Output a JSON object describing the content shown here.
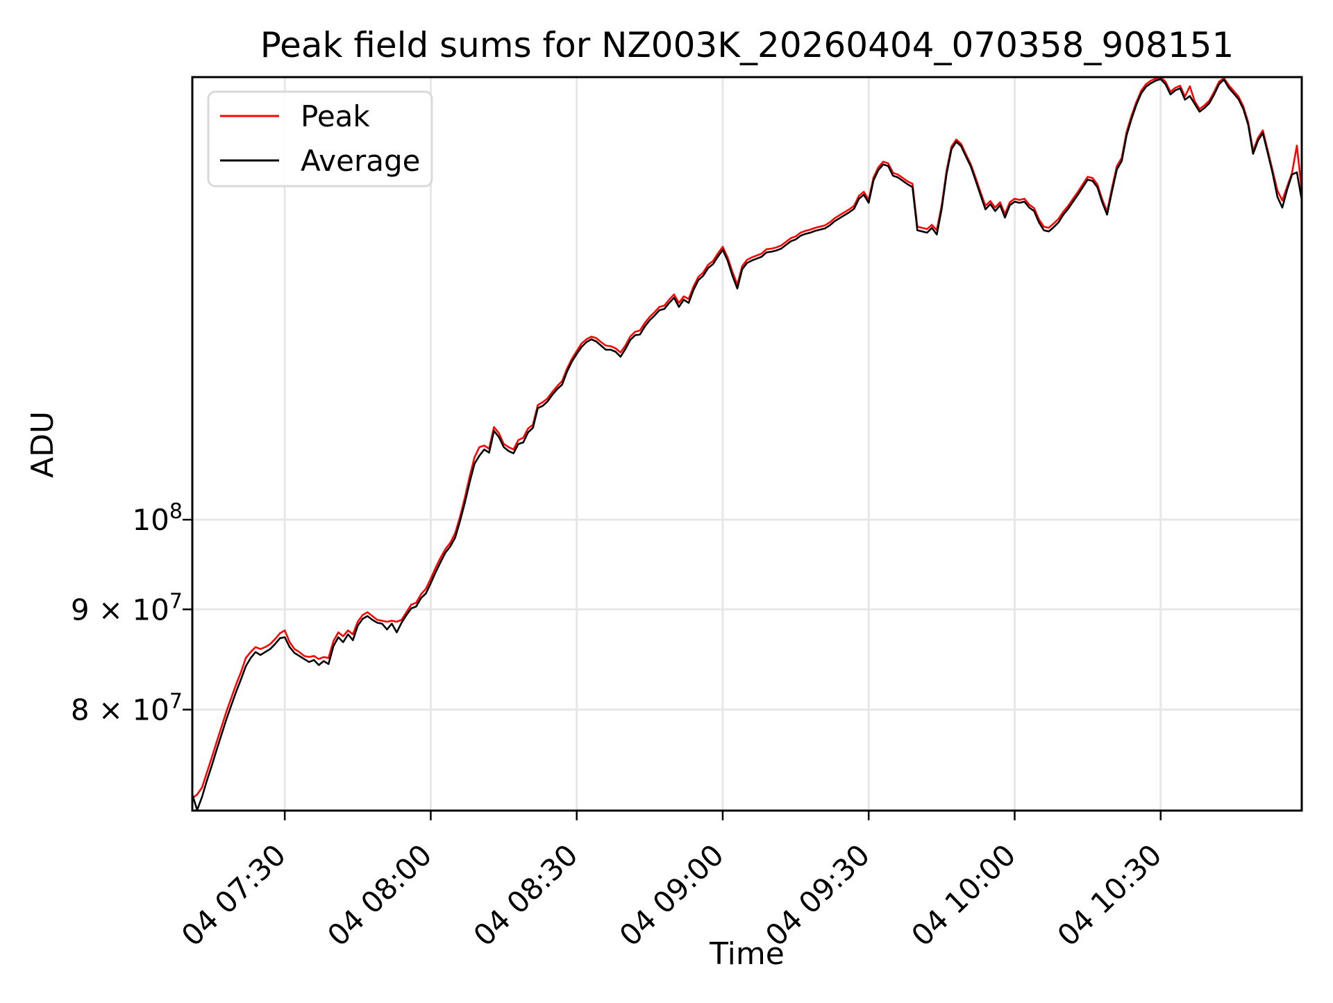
{
  "title": "Peak field sums for NZ003K_20260404_070358_908151",
  "x_axis": {
    "label": "Time",
    "ticks": [
      {
        "time": "07:30",
        "label": "04 07:30"
      },
      {
        "time": "08:00",
        "label": "04 08:00"
      },
      {
        "time": "08:30",
        "label": "04 08:30"
      },
      {
        "time": "09:00",
        "label": "04 09:00"
      },
      {
        "time": "09:30",
        "label": "04 09:30"
      },
      {
        "time": "10:00",
        "label": "04 10:00"
      },
      {
        "time": "10:30",
        "label": "04 10:30"
      }
    ],
    "tick_rotation_deg": 44
  },
  "y_axis": {
    "label": "ADU",
    "scale": "log",
    "ticks": [
      {
        "value": 80000000,
        "main": "8 × 10",
        "sup": "7"
      },
      {
        "value": 90000000,
        "main": "9 × 10",
        "sup": "7"
      },
      {
        "value": 100000000,
        "main": "10",
        "sup": "8"
      }
    ]
  },
  "legend": {
    "items": [
      {
        "label": "Peak",
        "color": "#ff0000"
      },
      {
        "label": "Average",
        "color": "#000000"
      }
    ]
  },
  "colors": {
    "peak": "#ff0000",
    "average": "#000000",
    "grid": "#e7e7e7",
    "spine": "#000000",
    "legend_edge": "#d9d9d9",
    "background": "#ffffff"
  },
  "chart_data": {
    "type": "line",
    "title": "Peak field sums for NZ003K_20260404_070358_908151",
    "xlabel": "Time",
    "ylabel": "ADU",
    "yscale": "log",
    "grid": true,
    "legend_position": "upper left",
    "x_start": "07:11",
    "x_end": "10:59",
    "x_step_minutes": 1,
    "values_scale": 1000000,
    "values_unit": "ADU",
    "ylim": [
      71050000,
      168200000
    ],
    "series": [
      {
        "name": "Peak",
        "color": "#ff0000",
        "values": [
          72.1,
          72.4,
          73.0,
          74.3,
          75.6,
          77.0,
          78.4,
          79.8,
          81.1,
          82.4,
          83.6,
          85.0,
          85.6,
          86.1,
          85.9,
          86.1,
          86.4,
          86.9,
          87.5,
          87.8,
          86.6,
          85.9,
          85.6,
          85.2,
          85.1,
          85.2,
          84.9,
          85.1,
          85.0,
          86.7,
          87.6,
          87.2,
          87.8,
          87.4,
          88.7,
          89.4,
          89.7,
          89.3,
          88.9,
          88.8,
          88.7,
          88.8,
          88.7,
          88.9,
          89.7,
          90.5,
          90.7,
          91.6,
          92.2,
          93.3,
          94.5,
          95.6,
          96.6,
          97.3,
          98.4,
          100.3,
          102.6,
          105.2,
          107.6,
          108.9,
          109.1,
          108.7,
          111.5,
          110.7,
          109.3,
          108.9,
          108.6,
          109.8,
          110.1,
          111.3,
          111.8,
          114.4,
          114.8,
          115.3,
          116.2,
          117.0,
          117.7,
          119.4,
          120.8,
          121.9,
          123.0,
          123.6,
          124.0,
          123.8,
          123.2,
          122.7,
          122.6,
          122.3,
          121.7,
          122.7,
          124.0,
          124.7,
          124.9,
          126.0,
          126.9,
          127.6,
          128.4,
          128.6,
          129.5,
          130.3,
          129.0,
          130.0,
          129.6,
          131.5,
          133.0,
          133.7,
          134.9,
          135.5,
          136.7,
          137.8,
          136.1,
          133.8,
          131.8,
          134.7,
          135.7,
          136.1,
          136.4,
          136.7,
          137.4,
          137.5,
          137.7,
          138.0,
          138.6,
          139.2,
          139.5,
          140.1,
          140.4,
          140.6,
          140.9,
          141.1,
          141.3,
          141.8,
          142.5,
          143.0,
          143.5,
          144.0,
          144.6,
          146.3,
          147.0,
          145.6,
          149.5,
          151.3,
          152.3,
          152.0,
          150.3,
          150.0,
          149.4,
          148.8,
          148.4,
          141.1,
          140.9,
          140.7,
          141.4,
          140.5,
          144.7,
          150.7,
          155.0,
          156.3,
          155.5,
          153.6,
          151.8,
          149.4,
          146.9,
          144.6,
          145.4,
          144.3,
          145.2,
          143.2,
          145.2,
          145.8,
          145.6,
          145.8,
          144.8,
          144.2,
          142.3,
          141.1,
          140.9,
          141.6,
          142.4,
          143.6,
          144.6,
          145.8,
          147.0,
          148.3,
          149.6,
          149.4,
          148.3,
          145.7,
          143.6,
          147.7,
          151.5,
          153.0,
          157.7,
          160.7,
          163.3,
          165.5,
          166.8,
          167.5,
          167.9,
          168.2,
          167.3,
          165.3,
          166.1,
          166.5,
          164.4,
          166.4,
          163.5,
          162.0,
          162.7,
          163.6,
          165.3,
          167.3,
          168.0,
          166.6,
          165.5,
          164.4,
          162.5,
          159.5,
          154.2,
          156.6,
          158.0,
          154.4,
          150.8,
          147.2,
          145.5,
          147.9,
          150.3,
          155.2,
          147.2
        ]
      },
      {
        "name": "Average",
        "color": "#000000",
        "values": [
          72.4,
          71.1,
          72.2,
          73.6,
          74.9,
          76.3,
          77.7,
          79.1,
          80.4,
          81.7,
          82.9,
          84.2,
          85.0,
          85.6,
          85.3,
          85.6,
          85.9,
          86.4,
          87.0,
          87.1,
          86.1,
          85.5,
          85.2,
          84.9,
          84.6,
          84.8,
          84.3,
          84.7,
          84.4,
          86.2,
          87.1,
          86.6,
          87.4,
          86.8,
          88.3,
          89.0,
          89.3,
          88.9,
          88.6,
          88.5,
          87.9,
          88.5,
          87.6,
          88.6,
          89.4,
          90.1,
          90.3,
          91.2,
          91.7,
          92.8,
          94.0,
          95.1,
          96.2,
          96.9,
          97.9,
          99.8,
          102.0,
          104.5,
          106.8,
          107.8,
          108.6,
          108.2,
          111.0,
          110.2,
          108.9,
          108.4,
          108.1,
          109.3,
          109.5,
          110.8,
          111.4,
          114.0,
          114.3,
          114.9,
          115.8,
          116.6,
          117.2,
          119.0,
          120.4,
          121.5,
          122.5,
          123.2,
          123.6,
          123.3,
          122.7,
          122.1,
          122.1,
          121.8,
          121.1,
          122.2,
          123.5,
          124.2,
          124.3,
          125.5,
          126.4,
          127.1,
          127.9,
          128.1,
          129.0,
          129.8,
          128.4,
          129.5,
          129.0,
          131.0,
          132.5,
          133.2,
          134.4,
          135.0,
          136.2,
          137.3,
          135.6,
          133.2,
          131.2,
          134.2,
          135.2,
          135.6,
          135.9,
          136.2,
          136.9,
          137.0,
          137.2,
          137.5,
          138.1,
          138.7,
          139.0,
          139.6,
          139.9,
          140.1,
          140.4,
          140.6,
          140.8,
          141.3,
          142.0,
          142.5,
          143.0,
          143.5,
          144.1,
          145.8,
          146.5,
          145.1,
          149.0,
          150.8,
          151.8,
          151.5,
          149.8,
          149.5,
          148.9,
          148.3,
          147.8,
          140.5,
          140.3,
          140.1,
          140.9,
          139.8,
          144.1,
          150.1,
          154.5,
          155.9,
          155.1,
          153.2,
          151.4,
          148.9,
          146.4,
          144.0,
          144.9,
          143.7,
          144.7,
          142.6,
          144.7,
          145.3,
          145.1,
          145.3,
          144.3,
          143.7,
          141.8,
          140.5,
          140.3,
          141.0,
          141.8,
          143.1,
          144.1,
          145.3,
          146.5,
          147.8,
          149.1,
          148.9,
          147.8,
          145.2,
          143.1,
          147.1,
          150.9,
          152.4,
          157.1,
          160.1,
          162.8,
          165.0,
          166.3,
          167.0,
          167.5,
          167.8,
          166.8,
          164.8,
          165.6,
          166.0,
          163.8,
          164.5,
          163.0,
          161.5,
          162.2,
          163.1,
          164.8,
          166.8,
          167.7,
          166.1,
          165.0,
          163.9,
          162.0,
          159.0,
          153.7,
          156.1,
          157.5,
          153.9,
          150.3,
          146.1,
          144.3,
          147.4,
          150.0,
          150.4,
          145.6
        ]
      }
    ]
  }
}
